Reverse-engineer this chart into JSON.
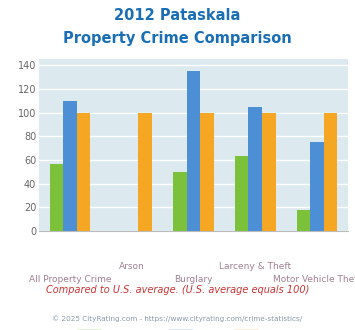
{
  "title_line1": "2012 Pataskala",
  "title_line2": "Property Crime Comparison",
  "title_color": "#1a6eb5",
  "categories": [
    "All Property Crime",
    "Arson",
    "Burglary",
    "Larceny & Theft",
    "Motor Vehicle Theft"
  ],
  "cats_upper": [
    "",
    "Arson",
    "",
    "Larceny & Theft",
    ""
  ],
  "cats_lower": [
    "All Property Crime",
    "",
    "Burglary",
    "",
    "Motor Vehicle Theft"
  ],
  "pataskala": [
    57,
    0,
    50,
    63,
    18
  ],
  "ohio": [
    110,
    0,
    135,
    105,
    75
  ],
  "national": [
    100,
    100,
    100,
    100,
    100
  ],
  "pataskala_color": "#7bc13a",
  "ohio_color": "#4d8fd4",
  "national_color": "#f5a623",
  "ylim": [
    0,
    145
  ],
  "yticks": [
    0,
    20,
    40,
    60,
    80,
    100,
    120,
    140
  ],
  "bg_color": "#dce9ef",
  "grid_color": "#ffffff",
  "xlabel_color": "#a08090",
  "tick_color": "#666666",
  "footer_text": "Compared to U.S. average. (U.S. average equals 100)",
  "footer_color": "#cc3333",
  "credit_text": "© 2025 CityRating.com - https://www.cityrating.com/crime-statistics/",
  "credit_color": "#8899aa",
  "fig_bg": "#ffffff"
}
